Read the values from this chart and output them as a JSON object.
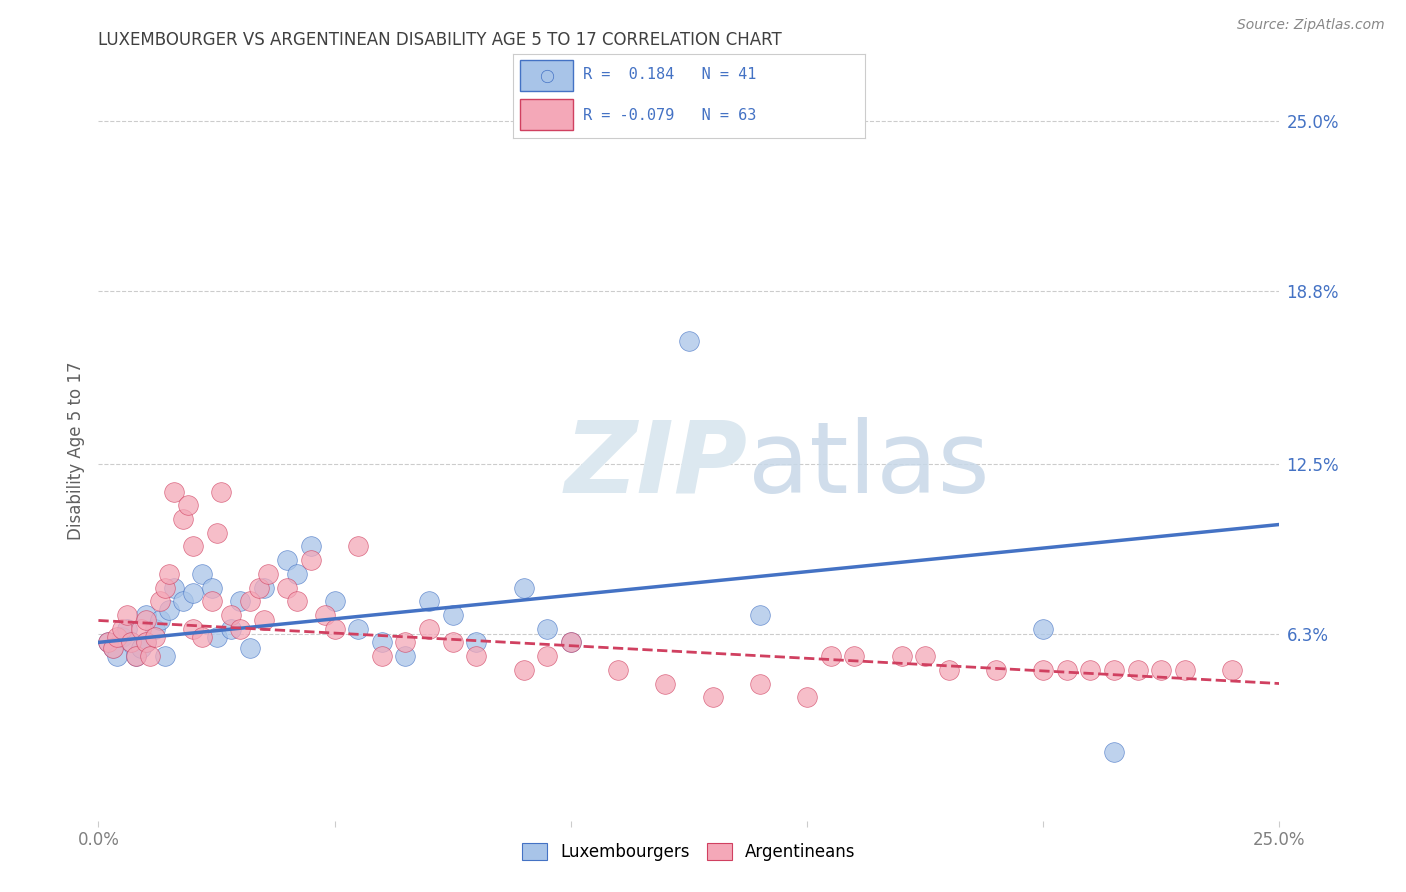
{
  "title": "LUXEMBOURGER VS ARGENTINEAN DISABILITY AGE 5 TO 17 CORRELATION CHART",
  "source": "Source: ZipAtlas.com",
  "ylabel": "Disability Age 5 to 17",
  "xlim": [
    0.0,
    0.25
  ],
  "ylim": [
    -0.005,
    0.265
  ],
  "ytick_right_labels": [
    "25.0%",
    "18.8%",
    "12.5%",
    "6.3%"
  ],
  "ytick_right_values": [
    0.25,
    0.188,
    0.125,
    0.063
  ],
  "luxembourg_R": "0.184",
  "luxembourg_N": "41",
  "argentinean_R": "-0.079",
  "argentinean_N": "63",
  "lux_color": "#a8c4e8",
  "arg_color": "#f4a8b8",
  "lux_line_color": "#4472c4",
  "arg_line_color": "#d04060",
  "watermark_color": "#dce8f0",
  "legend_text_color": "#4472c4",
  "title_color": "#404040",
  "background_color": "#ffffff",
  "lux_scatter_x": [
    0.002,
    0.003,
    0.004,
    0.005,
    0.006,
    0.007,
    0.008,
    0.009,
    0.01,
    0.01,
    0.012,
    0.013,
    0.014,
    0.015,
    0.016,
    0.018,
    0.02,
    0.022,
    0.024,
    0.025,
    0.028,
    0.03,
    0.032,
    0.035,
    0.04,
    0.042,
    0.045,
    0.05,
    0.055,
    0.06,
    0.065,
    0.07,
    0.075,
    0.08,
    0.09,
    0.095,
    0.1,
    0.125,
    0.14,
    0.2,
    0.215
  ],
  "lux_scatter_y": [
    0.06,
    0.058,
    0.055,
    0.062,
    0.065,
    0.06,
    0.055,
    0.058,
    0.07,
    0.06,
    0.065,
    0.068,
    0.055,
    0.072,
    0.08,
    0.075,
    0.078,
    0.085,
    0.08,
    0.062,
    0.065,
    0.075,
    0.058,
    0.08,
    0.09,
    0.085,
    0.095,
    0.075,
    0.065,
    0.06,
    0.055,
    0.075,
    0.07,
    0.06,
    0.08,
    0.065,
    0.06,
    0.17,
    0.07,
    0.065,
    0.02
  ],
  "arg_scatter_x": [
    0.002,
    0.003,
    0.004,
    0.005,
    0.006,
    0.007,
    0.008,
    0.009,
    0.01,
    0.01,
    0.011,
    0.012,
    0.013,
    0.014,
    0.015,
    0.016,
    0.018,
    0.019,
    0.02,
    0.02,
    0.022,
    0.024,
    0.025,
    0.026,
    0.028,
    0.03,
    0.032,
    0.034,
    0.035,
    0.036,
    0.04,
    0.042,
    0.045,
    0.048,
    0.05,
    0.055,
    0.06,
    0.065,
    0.07,
    0.075,
    0.08,
    0.09,
    0.095,
    0.1,
    0.11,
    0.12,
    0.13,
    0.14,
    0.15,
    0.155,
    0.16,
    0.17,
    0.175,
    0.18,
    0.19,
    0.2,
    0.205,
    0.21,
    0.215,
    0.22,
    0.225,
    0.23,
    0.24
  ],
  "arg_scatter_y": [
    0.06,
    0.058,
    0.062,
    0.065,
    0.07,
    0.06,
    0.055,
    0.065,
    0.06,
    0.068,
    0.055,
    0.062,
    0.075,
    0.08,
    0.085,
    0.115,
    0.105,
    0.11,
    0.095,
    0.065,
    0.062,
    0.075,
    0.1,
    0.115,
    0.07,
    0.065,
    0.075,
    0.08,
    0.068,
    0.085,
    0.08,
    0.075,
    0.09,
    0.07,
    0.065,
    0.095,
    0.055,
    0.06,
    0.065,
    0.06,
    0.055,
    0.05,
    0.055,
    0.06,
    0.05,
    0.045,
    0.04,
    0.045,
    0.04,
    0.055,
    0.055,
    0.055,
    0.055,
    0.05,
    0.05,
    0.05,
    0.05,
    0.05,
    0.05,
    0.05,
    0.05,
    0.05,
    0.05
  ]
}
